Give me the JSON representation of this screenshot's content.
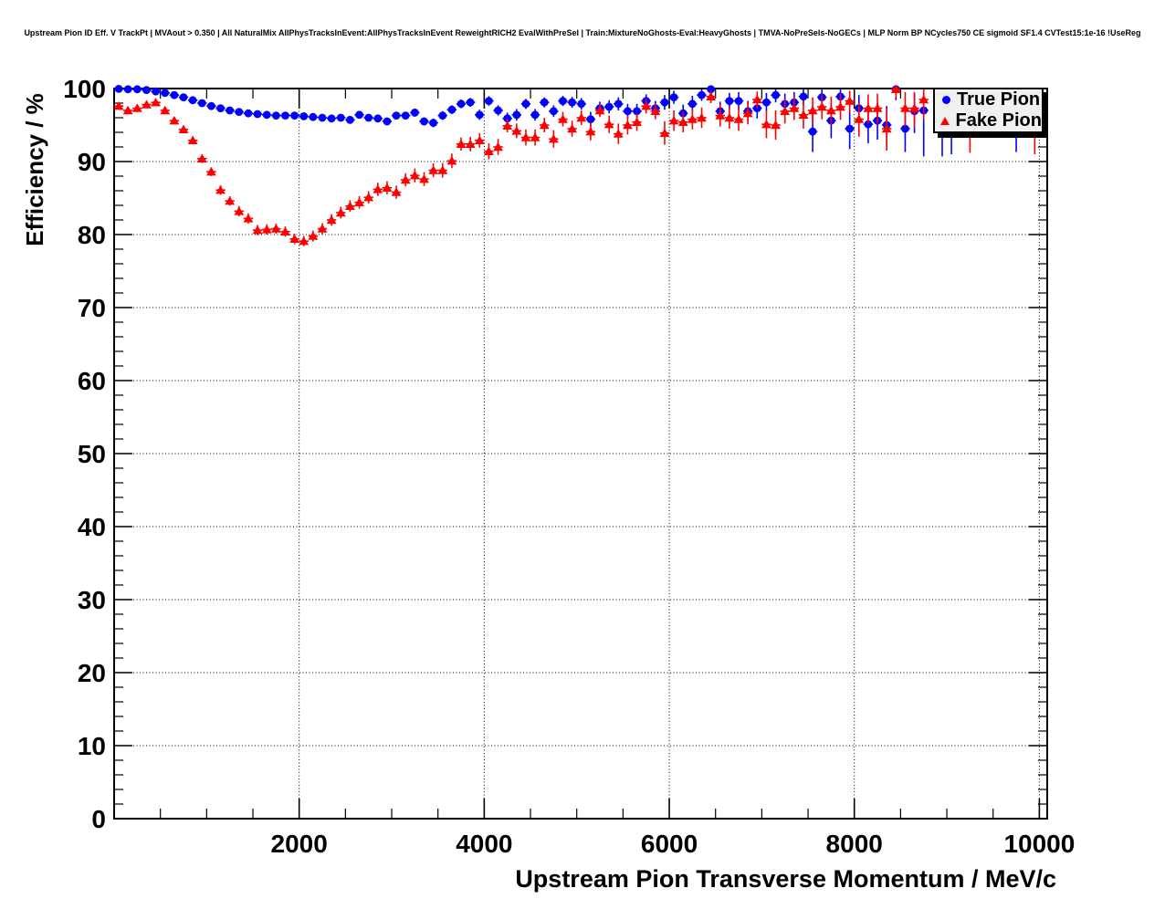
{
  "header": {
    "title": "Upstream Pion ID Eff. V TrackPt | MVAout > 0.350 | All NaturalMix AllPhysTracksInEvent:AllPhysTracksInEvent ReweightRICH2 EvalWithPreSel | Train:MixtureNoGhosts-Eval:HeavyGhosts | TMVA-NoPreSels-NoGECs | MLP Norm BP NCycles750 CE sigmoid SF1.4 CVTest15:1e-16 !UseReg"
  },
  "chart_data": {
    "type": "scatter",
    "title": "",
    "xlabel": "Upstream Pion Transverse Momentum / MeV/c",
    "ylabel": "Efficiency / %",
    "xlim": [
      0,
      10085
    ],
    "ylim": [
      0,
      100
    ],
    "x_ticks": [
      2000,
      4000,
      6000,
      8000,
      10000
    ],
    "x_minor_step": 500,
    "y_ticks": [
      0,
      10,
      20,
      30,
      40,
      50,
      60,
      70,
      80,
      90,
      100
    ],
    "y_minor_step": 2,
    "grid": "dotted-on-major-ticks",
    "legend": {
      "position": "top-right",
      "entries": [
        {
          "label": "True Pion",
          "marker": "circle",
          "color": "#0000ff"
        },
        {
          "label": "Fake Pion",
          "marker": "triangle",
          "color": "#ff0000"
        }
      ]
    },
    "series": [
      {
        "name": "True Pion",
        "marker": "circle",
        "color": "#0000ff",
        "points_format": [
          "pt_MeVc",
          "efficiency_pct",
          "err_low",
          "err_high"
        ],
        "points": [
          [
            50,
            99.95,
            0.05,
            0.05
          ],
          [
            150,
            99.9,
            0.1,
            0.1
          ],
          [
            250,
            99.9,
            0.1,
            0.1
          ],
          [
            350,
            99.8,
            0.1,
            0.1
          ],
          [
            450,
            99.6,
            0.15,
            0.15
          ],
          [
            550,
            99.4,
            0.15,
            0.15
          ],
          [
            650,
            99.1,
            0.2,
            0.2
          ],
          [
            750,
            98.8,
            0.2,
            0.2
          ],
          [
            850,
            98.4,
            0.2,
            0.2
          ],
          [
            950,
            98.0,
            0.25,
            0.25
          ],
          [
            1050,
            97.6,
            0.25,
            0.25
          ],
          [
            1150,
            97.3,
            0.3,
            0.3
          ],
          [
            1250,
            97.0,
            0.3,
            0.3
          ],
          [
            1350,
            96.8,
            0.3,
            0.3
          ],
          [
            1450,
            96.6,
            0.3,
            0.3
          ],
          [
            1550,
            96.5,
            0.3,
            0.3
          ],
          [
            1650,
            96.4,
            0.3,
            0.3
          ],
          [
            1750,
            96.3,
            0.3,
            0.3
          ],
          [
            1850,
            96.3,
            0.3,
            0.3
          ],
          [
            1950,
            96.3,
            0.3,
            0.3
          ],
          [
            2050,
            96.2,
            0.3,
            0.3
          ],
          [
            2150,
            96.1,
            0.35,
            0.35
          ],
          [
            2250,
            96.0,
            0.35,
            0.35
          ],
          [
            2350,
            95.9,
            0.35,
            0.35
          ],
          [
            2450,
            96.0,
            0.4,
            0.4
          ],
          [
            2550,
            95.7,
            0.4,
            0.4
          ],
          [
            2650,
            96.4,
            0.4,
            0.4
          ],
          [
            2750,
            96.0,
            0.45,
            0.45
          ],
          [
            2850,
            95.9,
            0.45,
            0.45
          ],
          [
            2950,
            95.5,
            0.5,
            0.5
          ],
          [
            3050,
            96.3,
            0.5,
            0.5
          ],
          [
            3150,
            96.3,
            0.5,
            0.5
          ],
          [
            3250,
            96.7,
            0.55,
            0.55
          ],
          [
            3350,
            95.5,
            0.55,
            0.55
          ],
          [
            3450,
            95.3,
            0.6,
            0.6
          ],
          [
            3550,
            96.3,
            0.6,
            0.6
          ],
          [
            3650,
            97.1,
            0.6,
            0.6
          ],
          [
            3750,
            97.9,
            0.6,
            0.6
          ],
          [
            3850,
            98.1,
            0.6,
            0.6
          ],
          [
            3950,
            96.4,
            0.7,
            0.7
          ],
          [
            4050,
            98.3,
            0.65,
            0.65
          ],
          [
            4150,
            97.0,
            0.7,
            0.7
          ],
          [
            4250,
            95.9,
            0.8,
            0.8
          ],
          [
            4350,
            96.4,
            0.8,
            0.8
          ],
          [
            4450,
            97.9,
            0.7,
            0.7
          ],
          [
            4550,
            96.4,
            0.8,
            0.8
          ],
          [
            4650,
            98.1,
            0.7,
            0.7
          ],
          [
            4750,
            96.9,
            0.8,
            0.8
          ],
          [
            4850,
            98.3,
            0.7,
            0.7
          ],
          [
            4950,
            98.1,
            0.75,
            0.75
          ],
          [
            5050,
            97.9,
            0.8,
            0.8
          ],
          [
            5150,
            95.8,
            1.0,
            1.0
          ],
          [
            5250,
            97.3,
            0.9,
            0.9
          ],
          [
            5350,
            97.5,
            0.9,
            0.9
          ],
          [
            5450,
            97.9,
            0.9,
            0.9
          ],
          [
            5550,
            96.9,
            1.0,
            1.0
          ],
          [
            5650,
            96.9,
            1.0,
            1.0
          ],
          [
            5750,
            98.3,
            0.9,
            0.9
          ],
          [
            5850,
            97.3,
            1.0,
            1.0
          ],
          [
            5950,
            98.1,
            1.0,
            1.0
          ],
          [
            6050,
            98.8,
            0.9,
            0.9
          ],
          [
            6150,
            96.6,
            1.2,
            1.2
          ],
          [
            6250,
            97.9,
            1.1,
            1.1
          ],
          [
            6350,
            99.1,
            0.8,
            0.8
          ],
          [
            6450,
            99.9,
            0.6,
            0.1
          ],
          [
            6550,
            96.9,
            1.3,
            1.3
          ],
          [
            6650,
            98.3,
            1.1,
            1.1
          ],
          [
            6750,
            98.3,
            1.2,
            1.2
          ],
          [
            6850,
            96.9,
            1.4,
            1.4
          ],
          [
            6950,
            97.3,
            1.4,
            1.4
          ],
          [
            7050,
            98.1,
            1.3,
            1.3
          ],
          [
            7150,
            99.1,
            1.0,
            0.8
          ],
          [
            7250,
            97.9,
            1.4,
            1.4
          ],
          [
            7350,
            98.1,
            1.4,
            1.4
          ],
          [
            7450,
            98.9,
            1.2,
            1.0
          ],
          [
            7550,
            94.1,
            2.8,
            2.4
          ],
          [
            7650,
            98.8,
            1.4,
            1.1
          ],
          [
            7750,
            95.6,
            2.4,
            2.2
          ],
          [
            7850,
            98.9,
            1.5,
            1.0
          ],
          [
            7950,
            94.5,
            2.8,
            2.6
          ],
          [
            8050,
            97.3,
            2.0,
            1.8
          ],
          [
            8150,
            95.1,
            2.6,
            2.4
          ],
          [
            8250,
            95.6,
            2.6,
            2.4
          ],
          [
            8350,
            95.0,
            2.8,
            2.6
          ],
          [
            8450,
            99.9,
            1.5,
            0.1
          ],
          [
            8550,
            94.5,
            3.2,
            3.0
          ],
          [
            8650,
            96.9,
            3.0,
            2.4
          ],
          [
            8750,
            97.0,
            6.3,
            2.5
          ],
          [
            8950,
            97.5,
            6.8,
            2.2
          ],
          [
            9050,
            98.0,
            7.0,
            1.8
          ],
          [
            9750,
            97.5,
            6.2,
            2.2
          ]
        ]
      },
      {
        "name": "Fake Pion",
        "marker": "triangle",
        "color": "#ff0000",
        "points_format": [
          "pt_MeVc",
          "efficiency_pct",
          "err_low",
          "err_high"
        ],
        "points": [
          [
            50,
            97.6,
            0.4,
            0.4
          ],
          [
            150,
            97.0,
            0.4,
            0.4
          ],
          [
            250,
            97.3,
            0.4,
            0.4
          ],
          [
            350,
            97.8,
            0.4,
            0.4
          ],
          [
            450,
            98.1,
            0.4,
            0.4
          ],
          [
            550,
            97.0,
            0.45,
            0.45
          ],
          [
            650,
            95.6,
            0.5,
            0.5
          ],
          [
            750,
            94.4,
            0.5,
            0.5
          ],
          [
            850,
            92.9,
            0.55,
            0.55
          ],
          [
            950,
            90.4,
            0.6,
            0.6
          ],
          [
            1050,
            88.6,
            0.6,
            0.6
          ],
          [
            1150,
            86.1,
            0.65,
            0.65
          ],
          [
            1250,
            84.6,
            0.65,
            0.65
          ],
          [
            1350,
            83.2,
            0.7,
            0.7
          ],
          [
            1450,
            82.2,
            0.7,
            0.7
          ],
          [
            1550,
            80.6,
            0.7,
            0.7
          ],
          [
            1650,
            80.7,
            0.7,
            0.7
          ],
          [
            1750,
            80.8,
            0.7,
            0.7
          ],
          [
            1850,
            80.4,
            0.7,
            0.7
          ],
          [
            1950,
            79.4,
            0.7,
            0.7
          ],
          [
            2050,
            79.1,
            0.7,
            0.7
          ],
          [
            2150,
            79.8,
            0.75,
            0.75
          ],
          [
            2250,
            80.8,
            0.75,
            0.75
          ],
          [
            2350,
            82.0,
            0.8,
            0.8
          ],
          [
            2450,
            83.0,
            0.8,
            0.8
          ],
          [
            2550,
            83.9,
            0.8,
            0.8
          ],
          [
            2650,
            84.4,
            0.85,
            0.85
          ],
          [
            2750,
            85.1,
            0.85,
            0.85
          ],
          [
            2850,
            86.2,
            0.9,
            0.9
          ],
          [
            2950,
            86.4,
            0.9,
            0.9
          ],
          [
            3050,
            85.8,
            0.9,
            0.9
          ],
          [
            3150,
            87.5,
            0.9,
            0.9
          ],
          [
            3250,
            88.1,
            0.95,
            0.95
          ],
          [
            3350,
            87.6,
            0.95,
            0.95
          ],
          [
            3450,
            88.8,
            0.95,
            0.95
          ],
          [
            3550,
            88.8,
            1.0,
            1.0
          ],
          [
            3650,
            90.1,
            1.0,
            1.0
          ],
          [
            3750,
            92.4,
            0.9,
            0.9
          ],
          [
            3850,
            92.4,
            1.0,
            1.0
          ],
          [
            3950,
            92.9,
            1.0,
            1.0
          ],
          [
            4050,
            91.4,
            1.1,
            1.1
          ],
          [
            4150,
            92.0,
            1.1,
            1.1
          ],
          [
            4250,
            94.9,
            0.9,
            0.9
          ],
          [
            4350,
            94.2,
            1.0,
            1.0
          ],
          [
            4450,
            93.3,
            1.1,
            1.1
          ],
          [
            4550,
            93.3,
            1.1,
            1.1
          ],
          [
            4650,
            95.0,
            1.0,
            1.0
          ],
          [
            4750,
            93.1,
            1.2,
            1.2
          ],
          [
            4850,
            95.8,
            1.0,
            1.0
          ],
          [
            4950,
            94.5,
            1.1,
            1.1
          ],
          [
            5050,
            96.0,
            1.0,
            1.0
          ],
          [
            5150,
            94.1,
            1.2,
            1.2
          ],
          [
            5250,
            97.0,
            0.9,
            0.9
          ],
          [
            5350,
            95.1,
            1.2,
            1.2
          ],
          [
            5450,
            93.8,
            1.4,
            1.4
          ],
          [
            5550,
            95.0,
            1.3,
            1.3
          ],
          [
            5650,
            95.4,
            1.2,
            1.2
          ],
          [
            5750,
            97.6,
            1.0,
            1.0
          ],
          [
            5850,
            96.9,
            1.1,
            1.1
          ],
          [
            5950,
            93.9,
            1.6,
            1.6
          ],
          [
            6050,
            95.6,
            1.4,
            1.4
          ],
          [
            6150,
            95.4,
            1.4,
            1.4
          ],
          [
            6250,
            95.8,
            1.4,
            1.4
          ],
          [
            6350,
            96.0,
            1.4,
            1.4
          ],
          [
            6450,
            98.9,
            0.9,
            0.8
          ],
          [
            6550,
            96.3,
            1.5,
            1.5
          ],
          [
            6650,
            96.0,
            1.5,
            1.5
          ],
          [
            6750,
            95.8,
            1.6,
            1.6
          ],
          [
            6850,
            96.6,
            1.5,
            1.5
          ],
          [
            6950,
            98.5,
            1.2,
            1.1
          ],
          [
            7050,
            95.1,
            1.9,
            1.9
          ],
          [
            7150,
            95.0,
            2.0,
            2.0
          ],
          [
            7250,
            96.9,
            1.7,
            1.7
          ],
          [
            7350,
            97.3,
            1.6,
            1.6
          ],
          [
            7450,
            96.4,
            1.9,
            1.9
          ],
          [
            7550,
            97.0,
            1.8,
            1.8
          ],
          [
            7650,
            97.5,
            1.7,
            1.7
          ],
          [
            7750,
            97.0,
            1.9,
            1.9
          ],
          [
            7850,
            97.5,
            1.8,
            1.8
          ],
          [
            7950,
            98.3,
            1.6,
            1.4
          ],
          [
            8050,
            95.8,
            2.4,
            2.2
          ],
          [
            8150,
            97.3,
            2.0,
            1.9
          ],
          [
            8250,
            97.3,
            2.1,
            2.0
          ],
          [
            8350,
            94.5,
            3.0,
            2.8
          ],
          [
            8450,
            99.9,
            1.2,
            0.1
          ],
          [
            8550,
            97.3,
            2.5,
            2.2
          ],
          [
            8650,
            97.3,
            2.6,
            2.2
          ],
          [
            8750,
            98.5,
            2.8,
            1.4
          ],
          [
            9250,
            98.0,
            6.8,
            1.6
          ],
          [
            9950,
            98.0,
            7.0,
            1.6
          ]
        ]
      }
    ]
  },
  "colors": {
    "true_pion": "#0000ff",
    "fake_pion": "#ff0000",
    "axis": "#000000",
    "legend_fill": "#f0f0f0",
    "background": "#ffffff"
  }
}
